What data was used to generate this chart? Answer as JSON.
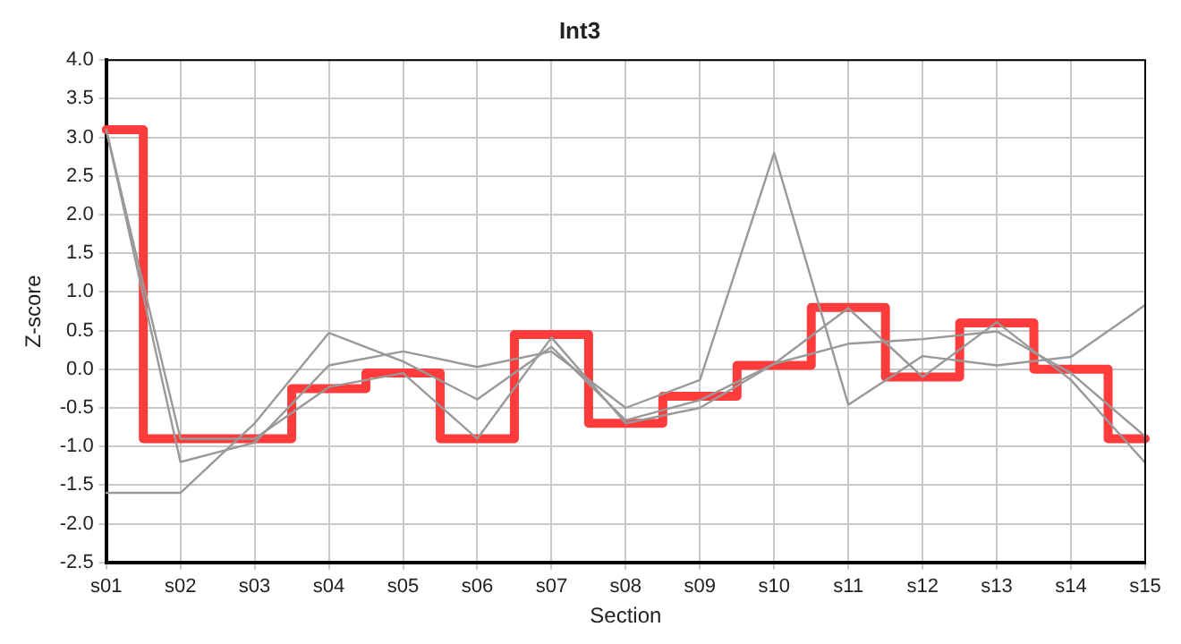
{
  "chart_data": {
    "type": "line",
    "title": "Int3",
    "xlabel": "Section",
    "ylabel": "Z-score",
    "categories": [
      "s01",
      "s02",
      "s03",
      "s04",
      "s05",
      "s06",
      "s07",
      "s08",
      "s09",
      "s10",
      "s11",
      "s12",
      "s13",
      "s14",
      "s15"
    ],
    "series": [
      {
        "type": "line",
        "color": "#999999",
        "values": [
          3.1,
          -1.2,
          -0.95,
          0.05,
          0.23,
          0.03,
          0.23,
          -0.5,
          -0.14,
          2.8,
          -0.46,
          0.17,
          0.05,
          0.16,
          0.83
        ]
      },
      {
        "type": "line",
        "color": "#999999",
        "values": [
          3.1,
          -0.9,
          -0.9,
          -0.23,
          -0.05,
          -0.9,
          0.41,
          -0.7,
          -0.5,
          0.07,
          0.79,
          -0.1,
          0.61,
          -0.14,
          -1.21
        ]
      },
      {
        "type": "line",
        "color": "#999999",
        "values": [
          -1.6,
          -1.6,
          -0.7,
          0.47,
          0.1,
          -0.39,
          0.29,
          -0.66,
          -0.4,
          0.07,
          0.33,
          0.39,
          0.49,
          -0.05,
          -0.87
        ]
      },
      {
        "type": "step",
        "color": "#ff3b3b",
        "values": [
          3.1,
          -0.9,
          -0.9,
          -0.25,
          -0.05,
          -0.9,
          0.45,
          -0.7,
          -0.35,
          0.05,
          0.8,
          -0.1,
          0.6,
          0,
          -0.9
        ]
      }
    ],
    "ylim": [
      -2.5,
      4.0
    ],
    "yticks": [
      {
        "value": -2.5,
        "label": "-2.5"
      },
      {
        "value": -2,
        "label": "-2.0"
      },
      {
        "value": -1.5,
        "label": "-1.5"
      },
      {
        "value": -1,
        "label": "-1.0"
      },
      {
        "value": -0.5,
        "label": "-0.5"
      },
      {
        "value": 0,
        "label": "0.0"
      },
      {
        "value": 0.5,
        "label": "0.5"
      },
      {
        "value": 1,
        "label": "1.0"
      },
      {
        "value": 1.5,
        "label": "1.5"
      },
      {
        "value": 2,
        "label": "2.0"
      },
      {
        "value": 2.5,
        "label": "2.5"
      },
      {
        "value": 3,
        "label": "3.0"
      },
      {
        "value": 3.5,
        "label": "3.5"
      },
      {
        "value": 4,
        "label": "4.0"
      }
    ],
    "grid": true,
    "legend": false,
    "marker": "none",
    "line_style": "solid"
  }
}
